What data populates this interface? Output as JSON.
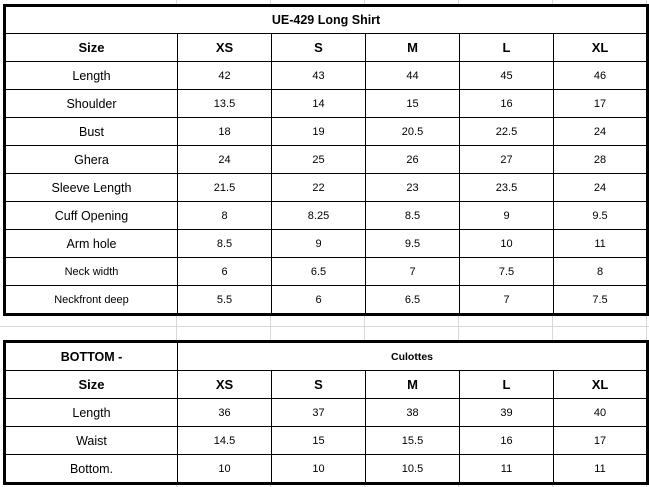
{
  "top_table": {
    "title": "UE-429  Long Shirt",
    "header": [
      "Size",
      "XS",
      "S",
      "M",
      "L",
      "XL"
    ],
    "rows": [
      {
        "label": "Length",
        "values": [
          "42",
          "43",
          "44",
          "45",
          "46"
        ]
      },
      {
        "label": "Shoulder",
        "values": [
          "13.5",
          "14",
          "15",
          "16",
          "17"
        ]
      },
      {
        "label": "Bust",
        "values": [
          "18",
          "19",
          "20.5",
          "22.5",
          "24"
        ]
      },
      {
        "label": "Ghera",
        "values": [
          "24",
          "25",
          "26",
          "27",
          "28"
        ]
      },
      {
        "label": "Sleeve Length",
        "values": [
          "21.5",
          "22",
          "23",
          "23.5",
          "24"
        ]
      },
      {
        "label": "Cuff Opening",
        "values": [
          "8",
          "8.25",
          "8.5",
          "9",
          "9.5"
        ]
      },
      {
        "label": "Arm hole",
        "values": [
          "8.5",
          "9",
          "9.5",
          "10",
          "11"
        ]
      },
      {
        "label": "Neck width",
        "values": [
          "6",
          "6.5",
          "7",
          "7.5",
          "8"
        ]
      },
      {
        "label": "Neckfront deep",
        "values": [
          "5.5",
          "6",
          "6.5",
          "7",
          "7.5"
        ]
      }
    ]
  },
  "bottom_table": {
    "title": "BOTTOM -",
    "subtitle": "Culottes",
    "header": [
      "Size",
      "XS",
      "S",
      "M",
      "L",
      "XL"
    ],
    "rows": [
      {
        "label": "Length",
        "values": [
          "36",
          "37",
          "38",
          "39",
          "40"
        ]
      },
      {
        "label": "Waist",
        "values": [
          "14.5",
          "15",
          "15.5",
          "16",
          "17"
        ]
      },
      {
        "label": "Bottom.",
        "values": [
          "10",
          "10",
          "10.5",
          "11",
          "11"
        ]
      }
    ]
  }
}
